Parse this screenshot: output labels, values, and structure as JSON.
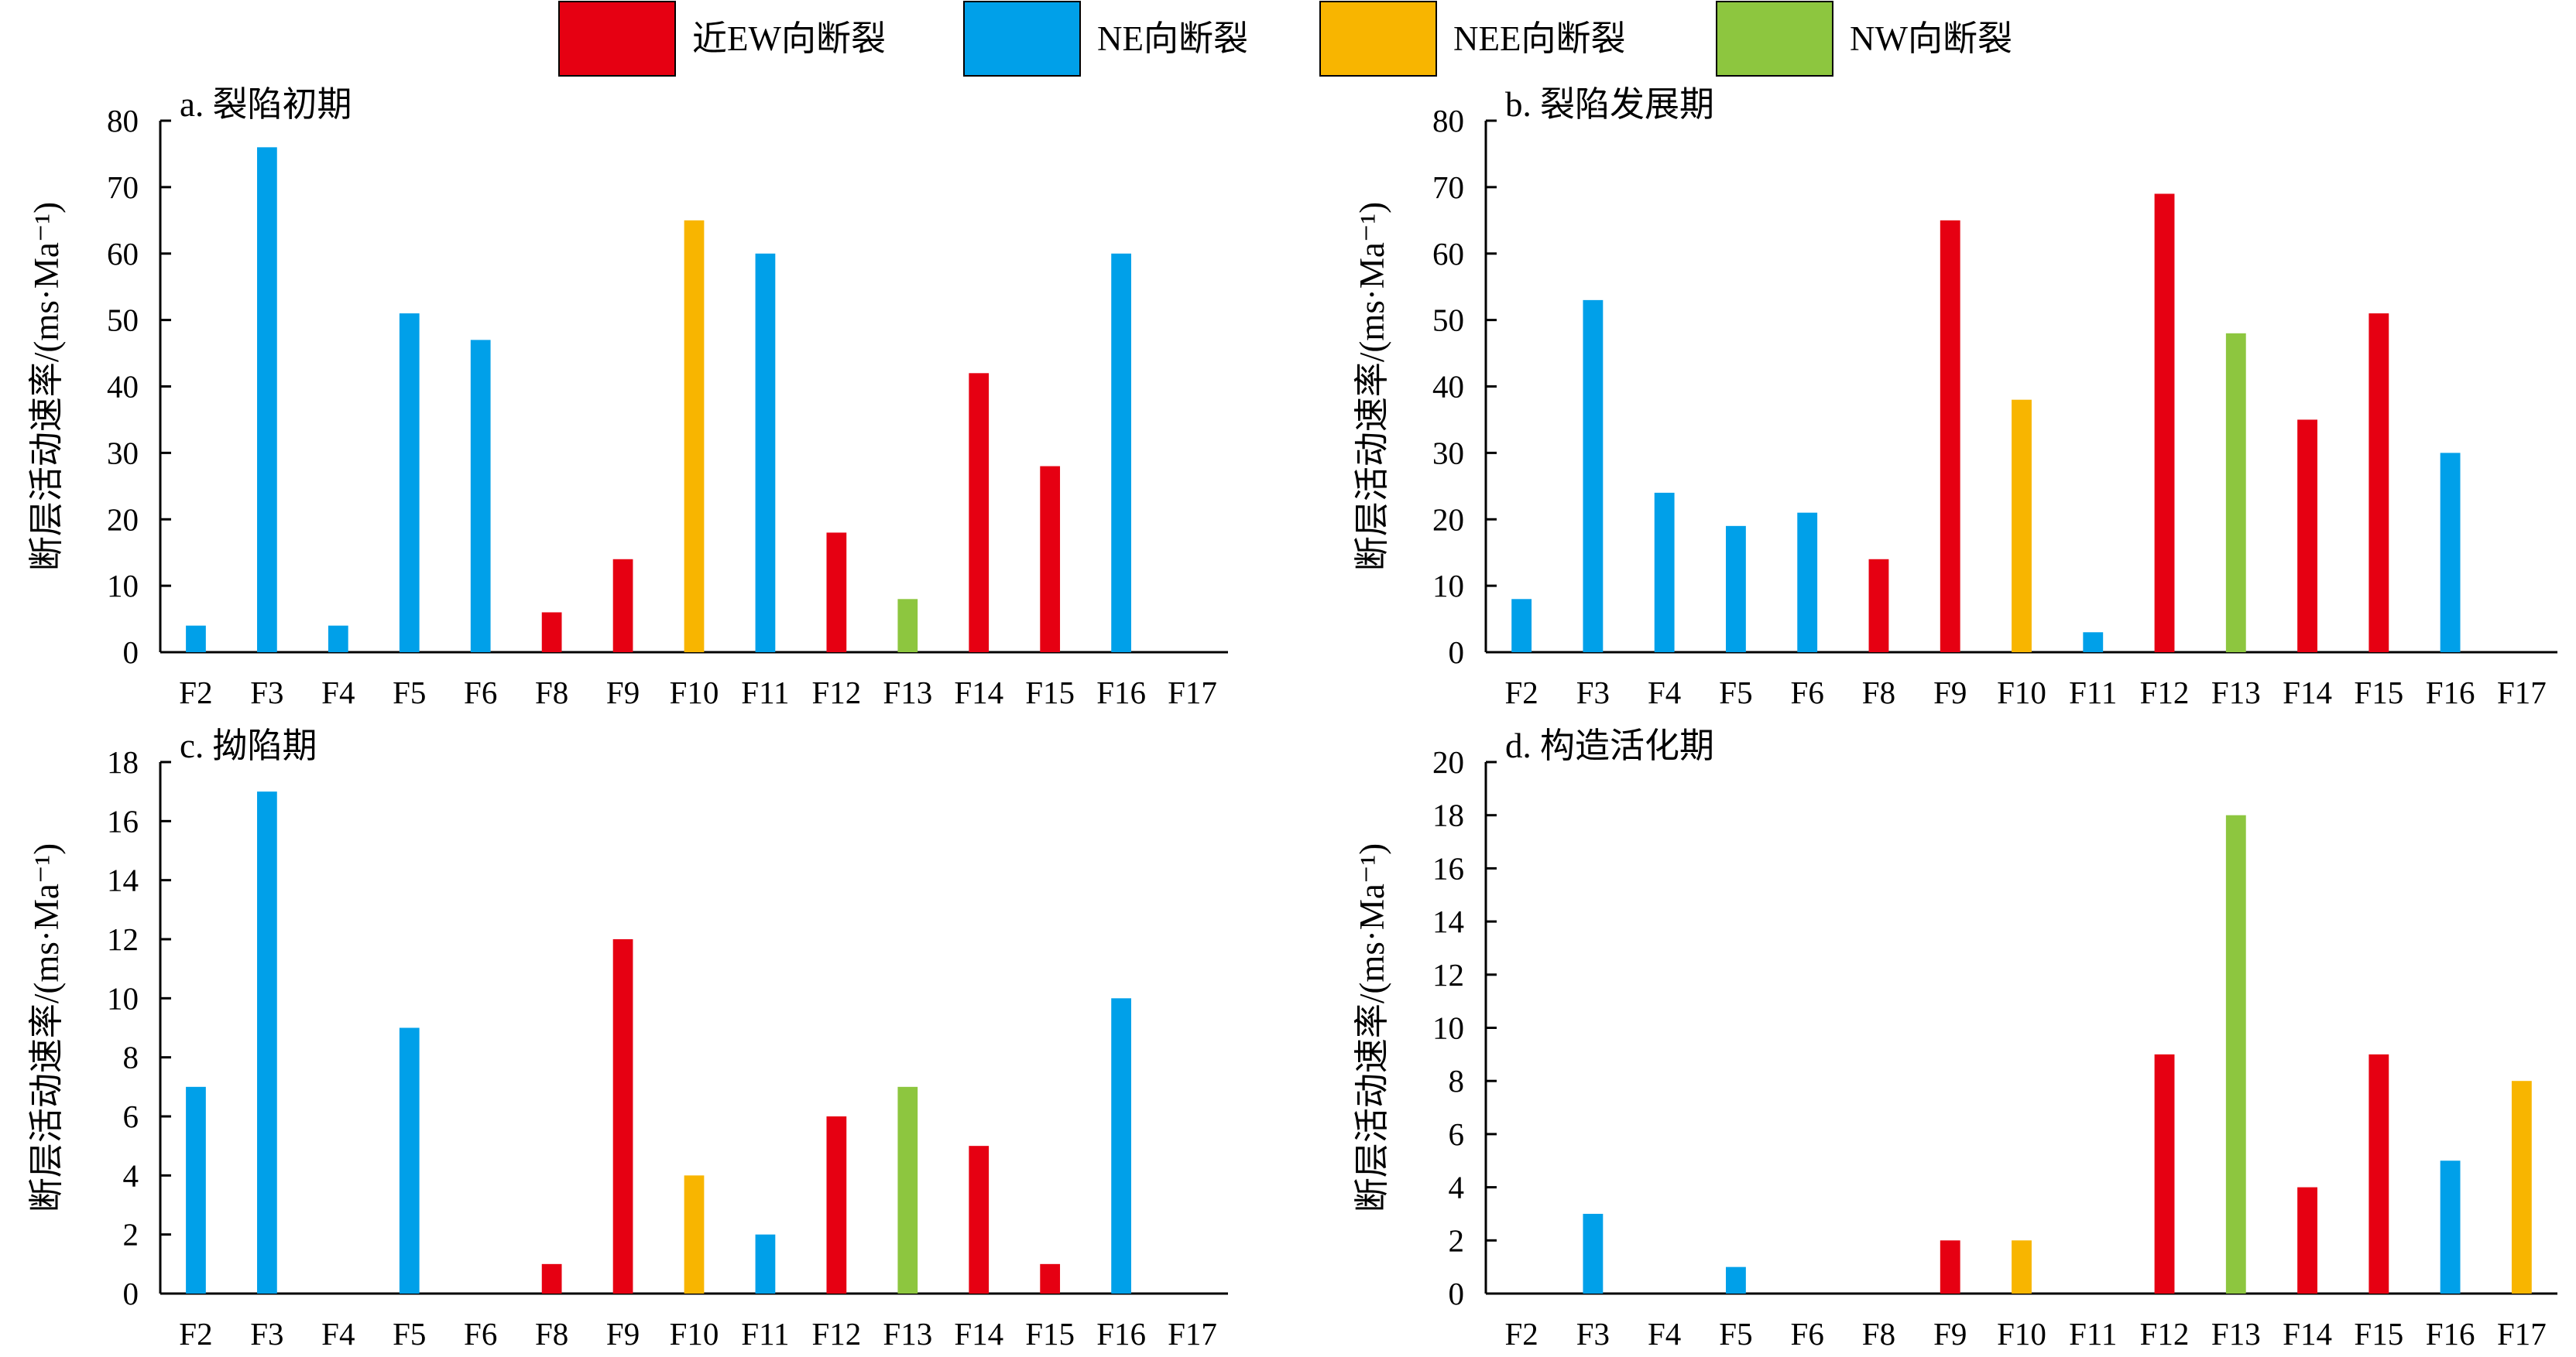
{
  "legend": [
    {
      "label": "近EW向断裂",
      "color": "#E60012"
    },
    {
      "label": "NE向断裂",
      "color": "#00A0E9"
    },
    {
      "label": "NEE向断裂",
      "color": "#F8B500"
    },
    {
      "label": "NW向断裂",
      "color": "#8DC63F"
    }
  ],
  "chart_data": [
    {
      "type": "bar",
      "title": "a. 裂陷初期",
      "ylabel": "断层活动速率/(ms·Ma⁻¹)",
      "ylim": [
        0,
        80
      ],
      "yticks": [
        0,
        10,
        20,
        30,
        40,
        50,
        60,
        70,
        80
      ],
      "categories": [
        "F2",
        "F3",
        "F4",
        "F5",
        "F6",
        "F8",
        "F9",
        "F10",
        "F11",
        "F12",
        "F13",
        "F14",
        "F15",
        "F16",
        "F17"
      ],
      "values": [
        4,
        76,
        4,
        51,
        47,
        6,
        14,
        65,
        60,
        18,
        8,
        42,
        28,
        60,
        0
      ],
      "fault_types": [
        "NE向断裂",
        "NE向断裂",
        "NE向断裂",
        "NE向断裂",
        "NE向断裂",
        "近EW向断裂",
        "近EW向断裂",
        "NEE向断裂",
        "NE向断裂",
        "近EW向断裂",
        "NW向断裂",
        "近EW向断裂",
        "近EW向断裂",
        "NE向断裂",
        "NEE向断裂"
      ]
    },
    {
      "type": "bar",
      "title": "b. 裂陷发展期",
      "ylabel": "断层活动速率/(ms·Ma⁻¹)",
      "ylim": [
        0,
        80
      ],
      "yticks": [
        0,
        10,
        20,
        30,
        40,
        50,
        60,
        70,
        80
      ],
      "categories": [
        "F2",
        "F3",
        "F4",
        "F5",
        "F6",
        "F8",
        "F9",
        "F10",
        "F11",
        "F12",
        "F13",
        "F14",
        "F15",
        "F16",
        "F17"
      ],
      "values": [
        8,
        53,
        24,
        19,
        21,
        14,
        65,
        38,
        3,
        69,
        48,
        35,
        51,
        30,
        0
      ],
      "fault_types": [
        "NE向断裂",
        "NE向断裂",
        "NE向断裂",
        "NE向断裂",
        "NE向断裂",
        "近EW向断裂",
        "近EW向断裂",
        "NEE向断裂",
        "NE向断裂",
        "近EW向断裂",
        "NW向断裂",
        "近EW向断裂",
        "近EW向断裂",
        "NE向断裂",
        "NEE向断裂"
      ]
    },
    {
      "type": "bar",
      "title": "c. 拗陷期",
      "ylabel": "断层活动速率/(ms·Ma⁻¹)",
      "ylim": [
        0,
        18
      ],
      "yticks": [
        0,
        2,
        4,
        6,
        8,
        10,
        12,
        14,
        16,
        18
      ],
      "categories": [
        "F2",
        "F3",
        "F4",
        "F5",
        "F6",
        "F8",
        "F9",
        "F10",
        "F11",
        "F12",
        "F13",
        "F14",
        "F15",
        "F16",
        "F17"
      ],
      "values": [
        7,
        17,
        0,
        9,
        0,
        1,
        12,
        4,
        2,
        6,
        7,
        5,
        1,
        10,
        0
      ],
      "fault_types": [
        "NE向断裂",
        "NE向断裂",
        "NE向断裂",
        "NE向断裂",
        "NE向断裂",
        "近EW向断裂",
        "近EW向断裂",
        "NEE向断裂",
        "NE向断裂",
        "近EW向断裂",
        "NW向断裂",
        "近EW向断裂",
        "近EW向断裂",
        "NE向断裂",
        "NEE向断裂"
      ]
    },
    {
      "type": "bar",
      "title": "d. 构造活化期",
      "ylabel": "断层活动速率/(ms·Ma⁻¹)",
      "ylim": [
        0,
        20
      ],
      "yticks": [
        0,
        2,
        4,
        6,
        8,
        10,
        12,
        14,
        16,
        18,
        20
      ],
      "categories": [
        "F2",
        "F3",
        "F4",
        "F5",
        "F6",
        "F8",
        "F9",
        "F10",
        "F11",
        "F12",
        "F13",
        "F14",
        "F15",
        "F16",
        "F17"
      ],
      "values": [
        0,
        3,
        0,
        1,
        0,
        0,
        2,
        2,
        0,
        9,
        18,
        4,
        9,
        5,
        8
      ],
      "fault_types": [
        "NE向断裂",
        "NE向断裂",
        "NE向断裂",
        "NE向断裂",
        "NE向断裂",
        "近EW向断裂",
        "近EW向断裂",
        "NEE向断裂",
        "NE向断裂",
        "近EW向断裂",
        "NW向断裂",
        "近EW向断裂",
        "近EW向断裂",
        "NE向断裂",
        "NEE向断裂"
      ]
    }
  ]
}
